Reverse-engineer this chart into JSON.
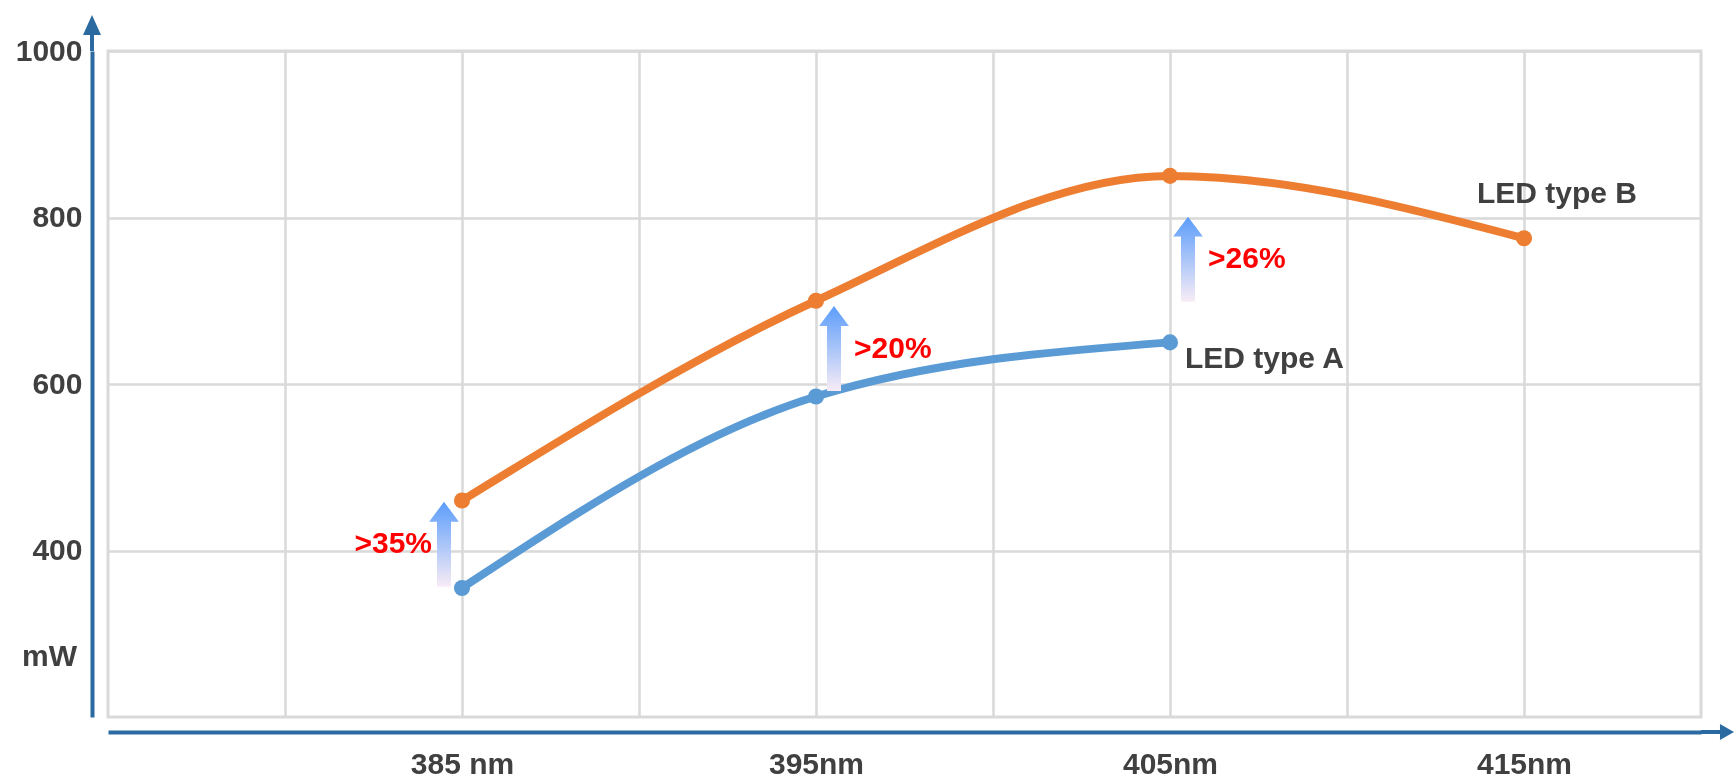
{
  "chart_data": {
    "type": "line",
    "ylabel": "mW",
    "series": [
      {
        "name": "LED type A",
        "color": "#5b9bd5",
        "x": [
          385,
          395,
          405
        ],
        "values": [
          355,
          585,
          650
        ]
      },
      {
        "name": "LED type B",
        "color": "#ed7d31",
        "x": [
          385,
          395,
          405,
          415
        ],
        "values": [
          460,
          700,
          850,
          775
        ]
      }
    ],
    "xlim": [
      375,
      420
    ],
    "xticks": [
      {
        "value": 380,
        "label": null
      },
      {
        "value": 385,
        "label": "385 nm"
      },
      {
        "value": 390,
        "label": null
      },
      {
        "value": 395,
        "label": "395nm"
      },
      {
        "value": 400,
        "label": null
      },
      {
        "value": 405,
        "label": "405nm"
      },
      {
        "value": 410,
        "label": null
      },
      {
        "value": 415,
        "label": "415nm"
      }
    ],
    "ylim": [
      200,
      1000
    ],
    "yticks": [
      400,
      600,
      800,
      1000
    ],
    "grid": true,
    "marker": "circle",
    "annotations": [
      {
        "text": ">35%",
        "x": 385,
        "y": 460
      },
      {
        "text": ">20%",
        "x": 395,
        "y": 700
      },
      {
        "text": ">26%",
        "x": 405,
        "y": 850
      }
    ]
  }
}
